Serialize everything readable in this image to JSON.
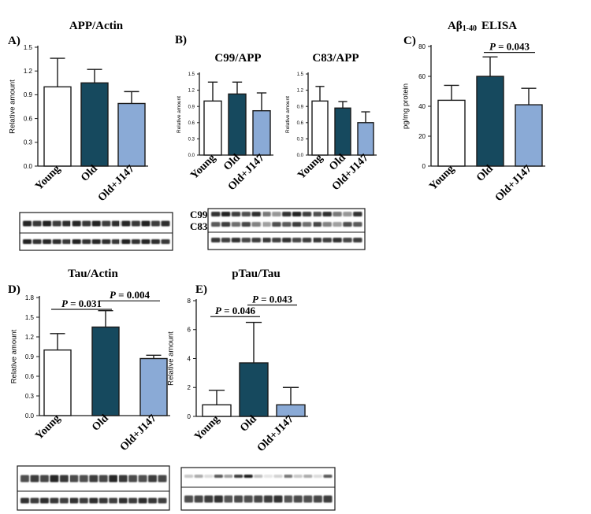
{
  "colors": {
    "young": "#ffffff",
    "old": "#16495e",
    "j147": "#8aaad6",
    "outline": "#1a1a1a"
  },
  "panels": {
    "A": {
      "letter": "A)",
      "title": "APP/Actin"
    },
    "B": {
      "letter": "B)"
    },
    "C": {
      "letter": "C)",
      "title_main": "Aβ",
      "title_sub": "1-40",
      "title_rest": "ELISA"
    },
    "D": {
      "letter": "D)",
      "title": "Tau/Actin"
    },
    "E": {
      "letter": "E)",
      "title": "pTau/Tau"
    }
  },
  "blot_labels": {
    "c99": "C99",
    "c83": "C83"
  },
  "chart_data": [
    {
      "id": "A",
      "type": "bar",
      "title": "APP/Actin",
      "ylabel": "Relative amount",
      "categories": [
        "Young",
        "Old",
        "Old+J147"
      ],
      "values": [
        1.0,
        1.05,
        0.79
      ],
      "errors": [
        0.36,
        0.17,
        0.15
      ],
      "ylim": [
        0,
        1.5
      ],
      "yticks": [
        "0.0",
        "0.3",
        "0.6",
        "0.9",
        "1.2",
        "1.5"
      ],
      "annotations": []
    },
    {
      "id": "B1",
      "type": "bar",
      "title": "C99/APP",
      "ylabel": "Relative amount",
      "categories": [
        "Young",
        "Old",
        "Old+J147"
      ],
      "values": [
        1.0,
        1.13,
        0.82
      ],
      "errors": [
        0.35,
        0.22,
        0.33
      ],
      "ylim": [
        0,
        1.5
      ],
      "yticks": [
        "0.0",
        "0.3",
        "0.6",
        "0.9",
        "1.2",
        "1.5"
      ],
      "annotations": []
    },
    {
      "id": "B2",
      "type": "bar",
      "title": "C83/APP",
      "ylabel": "Relative amount",
      "categories": [
        "Young",
        "Old",
        "Old+J147"
      ],
      "values": [
        1.0,
        0.87,
        0.6
      ],
      "errors": [
        0.27,
        0.12,
        0.2
      ],
      "ylim": [
        0,
        1.5
      ],
      "yticks": [
        "0.0",
        "0.3",
        "0.6",
        "0.9",
        "1.2",
        "1.5"
      ],
      "annotations": []
    },
    {
      "id": "C",
      "type": "bar",
      "title": "Aβ1-40 ELISA",
      "ylabel": "pg/mg protein",
      "categories": [
        "Young",
        "Old",
        "Old+J147"
      ],
      "values": [
        44,
        60,
        41
      ],
      "errors": [
        10,
        13,
        11
      ],
      "ylim": [
        0,
        80
      ],
      "yticks": [
        "0",
        "20",
        "40",
        "60",
        "80"
      ],
      "annotations": [
        {
          "text": "P = 0.043",
          "from": 1,
          "to": 2,
          "y": 76
        }
      ]
    },
    {
      "id": "D",
      "type": "bar",
      "title": "Tau/Actin",
      "ylabel": "Relative amount",
      "categories": [
        "Young",
        "Old",
        "Old+J147"
      ],
      "values": [
        1.0,
        1.35,
        0.87
      ],
      "errors": [
        0.25,
        0.25,
        0.05
      ],
      "ylim": [
        0,
        1.8
      ],
      "yticks": [
        "0.0",
        "0.3",
        "0.6",
        "0.9",
        "1.2",
        "1.5",
        "1.8"
      ],
      "annotations": [
        {
          "text": "P = 0.031",
          "from": 0,
          "to": 1,
          "y": 1.62
        },
        {
          "text": "P = 0.004",
          "from": 1,
          "to": 2,
          "y": 1.75
        }
      ]
    },
    {
      "id": "E",
      "type": "bar",
      "title": "pTau/Tau",
      "ylabel": "Relative amount",
      "categories": [
        "Young",
        "Old",
        "Old+J147"
      ],
      "values": [
        0.8,
        3.7,
        0.8
      ],
      "errors": [
        1.0,
        2.8,
        1.2
      ],
      "ylim": [
        0,
        8
      ],
      "yticks": [
        "0",
        "2",
        "4",
        "6",
        "8"
      ],
      "annotations": [
        {
          "text": "P = 0.046",
          "from": 0,
          "to": 1,
          "y": 6.9
        },
        {
          "text": "P = 0.043",
          "from": 1,
          "to": 2,
          "y": 7.7
        }
      ]
    }
  ]
}
